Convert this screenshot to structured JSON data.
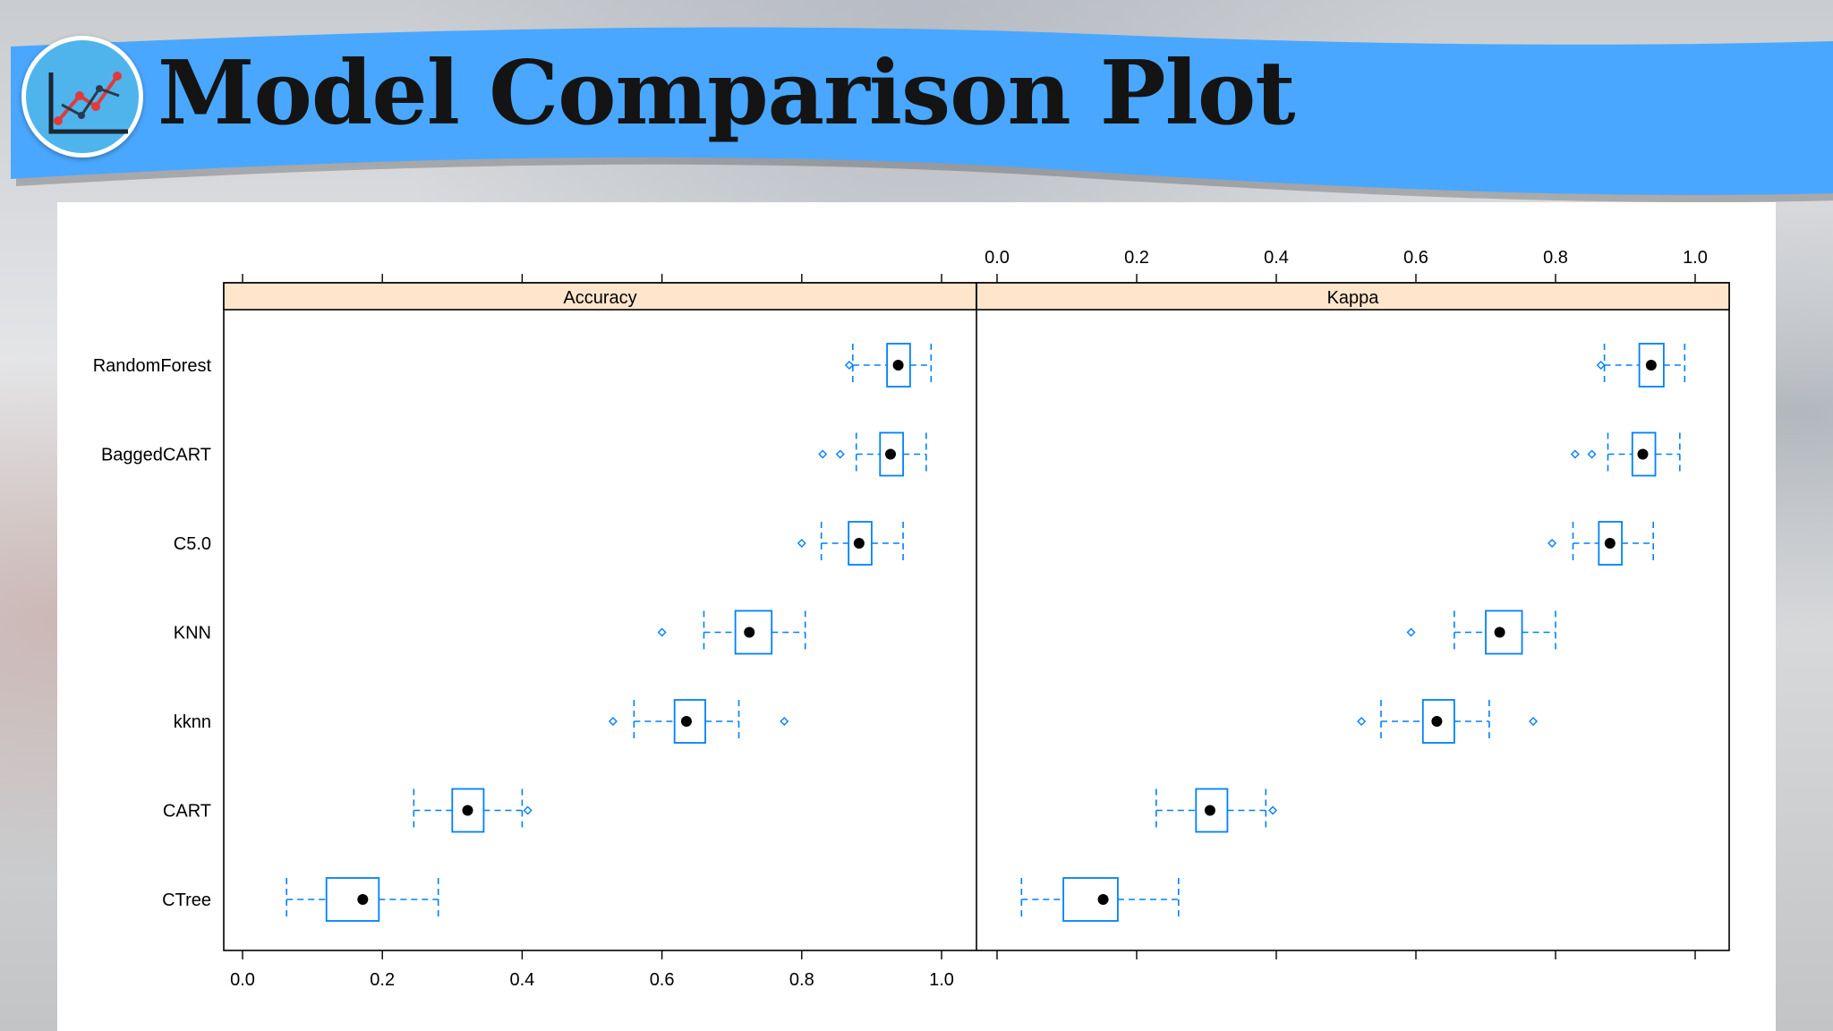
{
  "header": {
    "title": "Model Comparison Plot",
    "banner_color": "#4aa7ff",
    "logo_icon": "line-chart-icon"
  },
  "chart_data": {
    "type": "boxplot",
    "layout": "two-panel horizontal box-and-whisker (bwplot)",
    "categories": [
      "RandomForest",
      "BaggedCART",
      "C5.0",
      "KNN",
      "kknn",
      "CART",
      "CTree"
    ],
    "xlim": [
      0,
      1
    ],
    "ticks": [
      "0.0",
      "0.2",
      "0.4",
      "0.6",
      "0.8",
      "1.0"
    ],
    "strip_color": "#ffe5cc",
    "box_color": "#0080ff",
    "panels": [
      {
        "metric": "Accuracy",
        "boxes": [
          {
            "model": "RandomForest",
            "min": 0.873,
            "q1": 0.922,
            "median": 0.938,
            "q3": 0.955,
            "max": 0.985,
            "outliers": [
              0.868
            ]
          },
          {
            "model": "BaggedCART",
            "min": 0.878,
            "q1": 0.912,
            "median": 0.927,
            "q3": 0.945,
            "max": 0.978,
            "outliers": [
              0.83,
              0.855
            ]
          },
          {
            "model": "C5.0",
            "min": 0.828,
            "q1": 0.867,
            "median": 0.882,
            "q3": 0.9,
            "max": 0.945,
            "outliers": [
              0.8
            ]
          },
          {
            "model": "KNN",
            "min": 0.66,
            "q1": 0.705,
            "median": 0.725,
            "q3": 0.757,
            "max": 0.805,
            "outliers": [
              0.6
            ]
          },
          {
            "model": "kknn",
            "min": 0.56,
            "q1": 0.618,
            "median": 0.635,
            "q3": 0.662,
            "max": 0.71,
            "outliers": [
              0.53,
              0.775
            ]
          },
          {
            "model": "CART",
            "min": 0.245,
            "q1": 0.3,
            "median": 0.322,
            "q3": 0.345,
            "max": 0.4,
            "outliers": [
              0.408
            ]
          },
          {
            "model": "CTree",
            "min": 0.063,
            "q1": 0.12,
            "median": 0.172,
            "q3": 0.195,
            "max": 0.28,
            "outliers": []
          }
        ]
      },
      {
        "metric": "Kappa",
        "boxes": [
          {
            "model": "RandomForest",
            "min": 0.87,
            "q1": 0.92,
            "median": 0.937,
            "q3": 0.955,
            "max": 0.985,
            "outliers": [
              0.865
            ]
          },
          {
            "model": "BaggedCART",
            "min": 0.875,
            "q1": 0.91,
            "median": 0.925,
            "q3": 0.943,
            "max": 0.978,
            "outliers": [
              0.828,
              0.852
            ]
          },
          {
            "model": "C5.0",
            "min": 0.825,
            "q1": 0.862,
            "median": 0.878,
            "q3": 0.895,
            "max": 0.94,
            "outliers": [
              0.795
            ]
          },
          {
            "model": "KNN",
            "min": 0.655,
            "q1": 0.7,
            "median": 0.72,
            "q3": 0.752,
            "max": 0.8,
            "outliers": [
              0.593
            ]
          },
          {
            "model": "kknn",
            "min": 0.55,
            "q1": 0.61,
            "median": 0.63,
            "q3": 0.655,
            "max": 0.705,
            "outliers": [
              0.522,
              0.768
            ]
          },
          {
            "model": "CART",
            "min": 0.228,
            "q1": 0.285,
            "median": 0.305,
            "q3": 0.33,
            "max": 0.385,
            "outliers": [
              0.395
            ]
          },
          {
            "model": "CTree",
            "min": 0.035,
            "q1": 0.095,
            "median": 0.152,
            "q3": 0.173,
            "max": 0.26,
            "outliers": []
          }
        ]
      }
    ]
  }
}
